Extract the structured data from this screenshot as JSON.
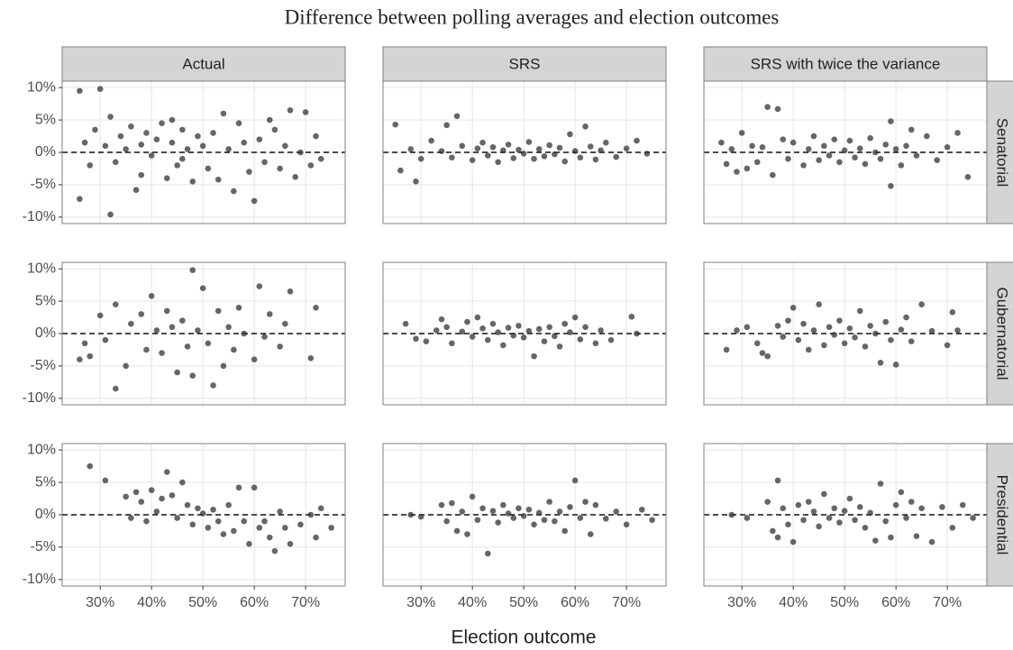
{
  "chart_data": {
    "type": "scatter",
    "title": "Difference between polling averages and election outcomes",
    "x_label": "Election outcome",
    "columns": [
      "Actual",
      "SRS",
      "SRS with twice the variance"
    ],
    "rows": [
      "Senatorial",
      "Gubernatorial",
      "Presidential"
    ],
    "xlim": [
      22.6,
      77.7
    ],
    "ylim": [
      -11,
      11
    ],
    "xticks": [
      {
        "value": 30,
        "label": "30%"
      },
      {
        "value": 40,
        "label": "40%"
      },
      {
        "value": 50,
        "label": "50%"
      },
      {
        "value": 60,
        "label": "60%"
      },
      {
        "value": 70,
        "label": "70%"
      }
    ],
    "yticks": [
      {
        "value": -10,
        "label": "-10%"
      },
      {
        "value": -5,
        "label": "-5%"
      },
      {
        "value": 0,
        "label": "0%"
      },
      {
        "value": 5,
        "label": "5%"
      },
      {
        "value": 10,
        "label": "10%"
      }
    ],
    "hline": 0,
    "grid": true,
    "color": "#333333",
    "opacity": 0.75,
    "panels": [
      [
        {
          "x": [
            26,
            26,
            27,
            28,
            29,
            30,
            31,
            32,
            32,
            33,
            34,
            35,
            36,
            37,
            38,
            38,
            39,
            40,
            41,
            42,
            43,
            44,
            44,
            45,
            46,
            46,
            47,
            48,
            49,
            50,
            51,
            52,
            53,
            54,
            55,
            56,
            57,
            58,
            59,
            60,
            61,
            62,
            63,
            64,
            65,
            66,
            67,
            68,
            69,
            70,
            71,
            72,
            73
          ],
          "y": [
            9.5,
            -7.2,
            1.5,
            -2.0,
            3.5,
            9.8,
            1.0,
            -9.6,
            5.5,
            -1.5,
            2.5,
            0.5,
            4.0,
            -5.8,
            1.2,
            -3.5,
            3.0,
            -0.5,
            2.0,
            4.5,
            -4.0,
            5.0,
            1.5,
            -2.0,
            3.5,
            -1.0,
            0.5,
            -4.5,
            2.5,
            1.0,
            -2.5,
            3.0,
            -4.2,
            6.0,
            0.5,
            -6.0,
            4.5,
            1.5,
            -3.0,
            -7.5,
            2.0,
            -1.5,
            5.0,
            3.5,
            -2.5,
            1.0,
            6.5,
            -3.8,
            0.0,
            6.2,
            -2.0,
            2.5,
            -1.0
          ]
        },
        {
          "x": [
            25,
            26,
            28,
            29,
            30,
            32,
            34,
            35,
            36,
            37,
            38,
            40,
            41,
            42,
            43,
            44,
            45,
            46,
            47,
            48,
            49,
            50,
            51,
            52,
            53,
            54,
            55,
            56,
            57,
            58,
            59,
            60,
            61,
            62,
            63,
            64,
            65,
            66,
            68,
            70,
            72,
            74
          ],
          "y": [
            4.3,
            -2.8,
            0.5,
            -4.5,
            -1.0,
            1.8,
            0.2,
            4.2,
            -0.8,
            5.6,
            1.0,
            -1.2,
            0.6,
            1.5,
            -0.5,
            0.8,
            -1.5,
            0.3,
            1.2,
            -0.9,
            0.4,
            -0.2,
            1.6,
            -1.0,
            0.5,
            -0.6,
            1.1,
            -0.3,
            0.7,
            -1.4,
            2.8,
            0.2,
            -0.8,
            4.0,
            0.9,
            -1.1,
            0.3,
            1.5,
            -0.7,
            0.6,
            1.8,
            -0.2
          ]
        },
        {
          "x": [
            26,
            27,
            28,
            29,
            30,
            31,
            32,
            33,
            34,
            35,
            36,
            37,
            38,
            39,
            40,
            42,
            43,
            44,
            45,
            46,
            47,
            48,
            49,
            50,
            51,
            52,
            53,
            54,
            55,
            56,
            57,
            58,
            59,
            59,
            60,
            61,
            62,
            63,
            64,
            66,
            68,
            70,
            72,
            74
          ],
          "y": [
            1.5,
            -1.8,
            0.5,
            -3.0,
            3.0,
            -2.5,
            1.0,
            -1.5,
            0.8,
            7.0,
            -3.5,
            6.7,
            2.0,
            -1.0,
            1.5,
            -2.0,
            0.5,
            2.5,
            -1.2,
            1.0,
            -0.5,
            2.0,
            -1.5,
            0.3,
            1.8,
            -0.8,
            0.6,
            -1.8,
            2.2,
            0.0,
            -1.0,
            1.2,
            -5.2,
            4.8,
            0.5,
            -2.0,
            1.0,
            3.5,
            -0.5,
            2.5,
            -1.2,
            0.8,
            3.0,
            -3.8
          ]
        }
      ],
      [
        {
          "x": [
            26,
            27,
            28,
            30,
            31,
            33,
            33,
            35,
            36,
            38,
            39,
            40,
            41,
            42,
            43,
            44,
            45,
            46,
            47,
            48,
            48,
            49,
            50,
            51,
            52,
            53,
            54,
            55,
            56,
            57,
            58,
            60,
            61,
            62,
            63,
            65,
            66,
            67,
            71,
            72
          ],
          "y": [
            -4.0,
            -1.5,
            -3.5,
            2.8,
            -1.0,
            -8.5,
            4.5,
            -5.0,
            1.5,
            3.0,
            -2.5,
            5.8,
            0.5,
            -3.0,
            3.5,
            1.0,
            -6.0,
            2.0,
            -2.0,
            9.8,
            -6.5,
            0.5,
            7.0,
            -1.5,
            -8.0,
            3.5,
            -5.0,
            1.0,
            -2.5,
            4.0,
            0.0,
            -4.0,
            7.3,
            -0.5,
            3.0,
            -2.0,
            1.5,
            6.5,
            -3.8,
            4.0
          ]
        },
        {
          "x": [
            27,
            29,
            31,
            33,
            34,
            35,
            36,
            38,
            39,
            40,
            41,
            42,
            43,
            44,
            45,
            46,
            47,
            48,
            49,
            50,
            51,
            52,
            53,
            54,
            55,
            56,
            57,
            58,
            59,
            60,
            61,
            62,
            64,
            65,
            67,
            71,
            72
          ],
          "y": [
            1.5,
            -0.8,
            -1.2,
            0.5,
            2.2,
            1.0,
            -1.5,
            0.3,
            1.8,
            -0.5,
            2.5,
            0.8,
            -1.0,
            1.5,
            0.2,
            -1.8,
            0.9,
            -0.3,
            1.2,
            -0.6,
            0.4,
            -3.5,
            0.7,
            -1.2,
            1.0,
            -0.4,
            -2.0,
            1.5,
            0.2,
            2.5,
            -0.9,
            1.0,
            -1.5,
            0.5,
            -1.0,
            2.6,
            0.0
          ]
        },
        {
          "x": [
            27,
            29,
            31,
            33,
            34,
            35,
            37,
            38,
            39,
            40,
            41,
            42,
            43,
            44,
            45,
            46,
            47,
            48,
            49,
            50,
            51,
            52,
            53,
            54,
            55,
            56,
            57,
            58,
            59,
            60,
            61,
            62,
            63,
            65,
            67,
            70,
            71,
            72
          ],
          "y": [
            -2.5,
            0.5,
            1.0,
            -1.5,
            -3.0,
            -3.5,
            1.2,
            -0.5,
            2.0,
            4.0,
            -1.0,
            1.5,
            -2.5,
            0.5,
            4.5,
            -1.8,
            1.0,
            -0.2,
            2.0,
            -1.5,
            0.8,
            -0.6,
            3.5,
            -2.0,
            1.2,
            0.0,
            -4.5,
            1.8,
            -1.0,
            -4.8,
            0.6,
            2.5,
            -1.2,
            4.5,
            0.4,
            -1.8,
            3.3,
            0.5
          ]
        }
      ],
      [
        {
          "x": [
            28,
            31,
            35,
            36,
            37,
            38,
            39,
            40,
            41,
            42,
            43,
            44,
            45,
            46,
            47,
            48,
            49,
            50,
            51,
            52,
            53,
            54,
            55,
            56,
            57,
            58,
            59,
            60,
            61,
            62,
            63,
            64,
            65,
            66,
            67,
            69,
            71,
            72,
            73,
            75
          ],
          "y": [
            7.5,
            5.3,
            2.8,
            -0.5,
            3.5,
            2.0,
            -1.0,
            3.8,
            0.5,
            2.5,
            6.6,
            3.0,
            -0.5,
            5.0,
            1.5,
            -1.5,
            1.0,
            0.2,
            -2.0,
            0.8,
            -1.0,
            -3.0,
            1.5,
            -2.5,
            4.2,
            -1.0,
            -4.5,
            4.2,
            -2.0,
            -1.0,
            -3.5,
            -5.6,
            0.5,
            -2.0,
            -4.5,
            -1.5,
            0.0,
            -3.5,
            1.0,
            -2.0
          ]
        },
        {
          "x": [
            28,
            30,
            34,
            35,
            36,
            37,
            38,
            39,
            40,
            41,
            42,
            43,
            44,
            45,
            46,
            47,
            48,
            49,
            50,
            51,
            52,
            53,
            54,
            55,
            56,
            57,
            58,
            59,
            60,
            61,
            62,
            63,
            64,
            66,
            68,
            70,
            73,
            75
          ],
          "y": [
            0.0,
            -0.3,
            1.5,
            -1.0,
            1.8,
            -2.5,
            0.5,
            -3.0,
            2.8,
            -0.8,
            1.0,
            -6.0,
            0.6,
            -1.2,
            1.5,
            0.2,
            -0.5,
            1.0,
            -0.2,
            0.8,
            -1.5,
            0.3,
            -0.8,
            2.0,
            -1.0,
            0.5,
            -2.5,
            1.2,
            5.3,
            -0.5,
            2.0,
            -3.0,
            1.5,
            -0.6,
            0.5,
            -1.5,
            0.8,
            -0.8
          ]
        },
        {
          "x": [
            28,
            31,
            35,
            36,
            37,
            37,
            38,
            39,
            40,
            41,
            42,
            43,
            44,
            45,
            46,
            47,
            48,
            49,
            50,
            51,
            52,
            53,
            54,
            55,
            56,
            57,
            58,
            59,
            60,
            61,
            62,
            63,
            64,
            65,
            67,
            69,
            71,
            73,
            75
          ],
          "y": [
            0.0,
            -0.5,
            2.0,
            -2.5,
            5.3,
            -3.5,
            1.0,
            -1.5,
            -4.2,
            1.5,
            -0.8,
            2.0,
            0.5,
            -1.8,
            3.2,
            -0.5,
            1.0,
            -1.2,
            0.6,
            2.5,
            -0.8,
            1.2,
            -2.0,
            0.3,
            -4.0,
            4.8,
            -1.0,
            -3.5,
            1.5,
            3.5,
            -0.5,
            2.0,
            -3.3,
            1.0,
            -4.2,
            1.2,
            -2.0,
            1.5,
            -0.5
          ]
        }
      ]
    ]
  }
}
